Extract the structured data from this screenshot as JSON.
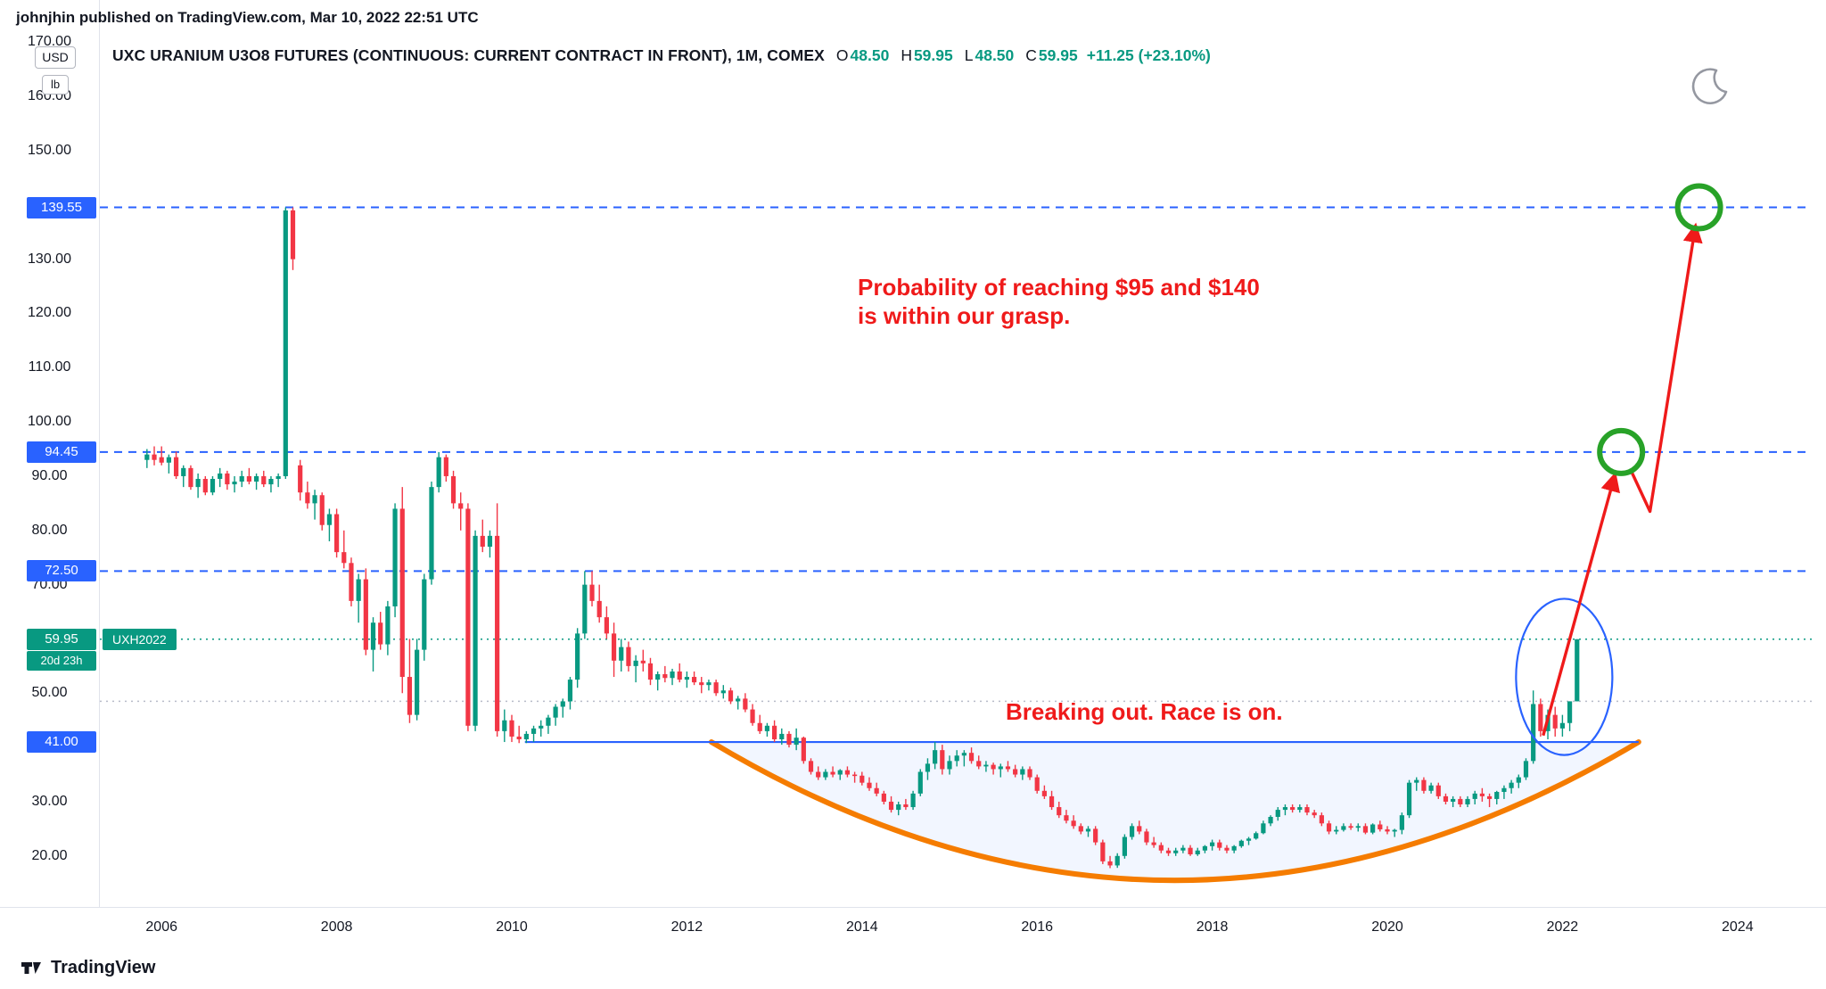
{
  "page": {
    "publisher_line": "johnjhin published on TradingView.com, Mar 10, 2022 22:51 UTC"
  },
  "header": {
    "title": "UXC URANIUM U3O8 FUTURES (CONTINUOUS: CURRENT CONTRACT IN FRONT), 1M, COMEX",
    "ohlc": [
      {
        "label": "O",
        "value": "48.50"
      },
      {
        "label": "H",
        "value": "59.95"
      },
      {
        "label": "L",
        "value": "48.50"
      },
      {
        "label": "C",
        "value": "59.95"
      }
    ],
    "change": "+11.25 (+23.10%)",
    "up_color": "#089981"
  },
  "axis": {
    "unit_primary": "USD",
    "unit_secondary": "lb",
    "y_ticks": [
      {
        "text": "170.00",
        "value": 170
      },
      {
        "text": "160.00",
        "value": 160
      },
      {
        "text": "150.00",
        "value": 150
      },
      {
        "text": "130.00",
        "value": 130
      },
      {
        "text": "120.00",
        "value": 120
      },
      {
        "text": "110.00",
        "value": 110
      },
      {
        "text": "100.00",
        "value": 100
      },
      {
        "text": "90.00",
        "value": 90
      },
      {
        "text": "80.00",
        "value": 80
      },
      {
        "text": "70.00",
        "value": 70
      },
      {
        "text": "50.00",
        "value": 50
      },
      {
        "text": "30.00",
        "value": 30
      },
      {
        "text": "20.00",
        "value": 20
      }
    ],
    "x_ticks": [
      {
        "text": "2006",
        "year": 2006
      },
      {
        "text": "2008",
        "year": 2008
      },
      {
        "text": "2010",
        "year": 2010
      },
      {
        "text": "2012",
        "year": 2012
      },
      {
        "text": "2014",
        "year": 2014
      },
      {
        "text": "2016",
        "year": 2016
      },
      {
        "text": "2018",
        "year": 2018
      },
      {
        "text": "2020",
        "year": 2020
      },
      {
        "text": "2022",
        "year": 2022
      },
      {
        "text": "2024",
        "year": 2024
      }
    ]
  },
  "annotations": {
    "note1_line1": "Probability of reaching $95 and $140",
    "note1_line2": "is within our grasp.",
    "note2": "Breaking out. Race is on.",
    "color": "#ef1a1a"
  },
  "footer": {
    "logo_text": "TradingView"
  },
  "chart_data": {
    "type": "candlestick",
    "title": "UXC URANIUM U3O8 FUTURES (CONTINUOUS: CURRENT CONTRACT IN FRONT)",
    "interval": "1M",
    "exchange": "COMEX",
    "last_ohlc": {
      "open": 48.5,
      "high": 59.95,
      "low": 48.5,
      "close": 59.95,
      "change": 11.25,
      "change_pct": 23.1
    },
    "current_price": 59.95,
    "prev_close": 48.5,
    "up_color": "#089981",
    "down_color": "#f23645",
    "visible_price_range": [
      15,
      172
    ],
    "visible_year_range": [
      2005.6,
      2025.1
    ],
    "start": {
      "year": 2005,
      "month": 11
    },
    "candles": [
      [
        93,
        95,
        91.5,
        94
      ],
      [
        94,
        95.5,
        92,
        93
      ],
      [
        93.5,
        95.5,
        92,
        92.5
      ],
      [
        92.5,
        94,
        90.5,
        93.5
      ],
      [
        93.5,
        94.5,
        89.5,
        90
      ],
      [
        90,
        92,
        88,
        91.5
      ],
      [
        91.5,
        92,
        87.5,
        88
      ],
      [
        88,
        90.5,
        86,
        89.5
      ],
      [
        89.5,
        90,
        86.5,
        87
      ],
      [
        87,
        90,
        86.5,
        89.5
      ],
      [
        89.5,
        91.5,
        88,
        90.5
      ],
      [
        90.5,
        91,
        87.5,
        88.5
      ],
      [
        88.5,
        90,
        87,
        89
      ],
      [
        89,
        91,
        88,
        90
      ],
      [
        90,
        91.5,
        88.5,
        89
      ],
      [
        89,
        90.5,
        87.5,
        90
      ],
      [
        90,
        91,
        88,
        88.5
      ],
      [
        88.5,
        90,
        87,
        89.5
      ],
      [
        89.5,
        90.5,
        88,
        90
      ],
      [
        90,
        139.55,
        89.5,
        139
      ],
      [
        139,
        139.55,
        128,
        130
      ],
      [
        92,
        93,
        85.5,
        87
      ],
      [
        87,
        89,
        84,
        85
      ],
      [
        85,
        87.5,
        82,
        86.5
      ],
      [
        86.5,
        87,
        80,
        81
      ],
      [
        81,
        84,
        78,
        83
      ],
      [
        83,
        84,
        75,
        76
      ],
      [
        76,
        80,
        73,
        74
      ],
      [
        74,
        75,
        66,
        67
      ],
      [
        67,
        72,
        63,
        71
      ],
      [
        71,
        73,
        57,
        58
      ],
      [
        58,
        64,
        54,
        63
      ],
      [
        63,
        65,
        58,
        59
      ],
      [
        59,
        67,
        57,
        66
      ],
      [
        66,
        85,
        64,
        84
      ],
      [
        84,
        88,
        50,
        53
      ],
      [
        53,
        60,
        44.5,
        46
      ],
      [
        46,
        60,
        45,
        58
      ],
      [
        58,
        72,
        56,
        71
      ],
      [
        71,
        89,
        70,
        88
      ],
      [
        88,
        94.45,
        87,
        93.5
      ],
      [
        93.5,
        94,
        89,
        90
      ],
      [
        90,
        91,
        84,
        85
      ],
      [
        85,
        87,
        80,
        84
      ],
      [
        84,
        85,
        43,
        44
      ],
      [
        44,
        80,
        43,
        79
      ],
      [
        79,
        82,
        76,
        77
      ],
      [
        77,
        80,
        75,
        79
      ],
      [
        79,
        85,
        42,
        43
      ],
      [
        43,
        47,
        41,
        45
      ],
      [
        45,
        46,
        41,
        42
      ],
      [
        42,
        44,
        40.8,
        41.5
      ],
      [
        41.5,
        43,
        40.8,
        42.5
      ],
      [
        42.5,
        44,
        41,
        43.5
      ],
      [
        43.5,
        45,
        42,
        44
      ],
      [
        44,
        46,
        42.5,
        45.5
      ],
      [
        45.5,
        48,
        44,
        47.5
      ],
      [
        47.5,
        49,
        45.5,
        48.5
      ],
      [
        48.5,
        53,
        47,
        52.5
      ],
      [
        52.5,
        62,
        51,
        61
      ],
      [
        61,
        72.5,
        60,
        70
      ],
      [
        70,
        72.5,
        66,
        67
      ],
      [
        67,
        70,
        63,
        64
      ],
      [
        64,
        66,
        60,
        61
      ],
      [
        61,
        63,
        53,
        56
      ],
      [
        56,
        60,
        54,
        58.5
      ],
      [
        58.5,
        59.5,
        54,
        55
      ],
      [
        55,
        57,
        52,
        56
      ],
      [
        56,
        58,
        54,
        55.5
      ],
      [
        55.5,
        56.5,
        51.5,
        52.5
      ],
      [
        52.5,
        54,
        50.5,
        53.5
      ],
      [
        53.5,
        55,
        52,
        52.8
      ],
      [
        52.8,
        54.5,
        51.5,
        54
      ],
      [
        54,
        55.5,
        52,
        52.5
      ],
      [
        52.5,
        54,
        51,
        53
      ],
      [
        53,
        54,
        51.5,
        52
      ],
      [
        52,
        53,
        50,
        51.5
      ],
      [
        51.5,
        52.5,
        50.5,
        52
      ],
      [
        52,
        52.5,
        49.5,
        50
      ],
      [
        50,
        51.5,
        49,
        50.5
      ],
      [
        50.5,
        51,
        48,
        48.5
      ],
      [
        48.5,
        49.5,
        47,
        49
      ],
      [
        49,
        50,
        46.5,
        47
      ],
      [
        47,
        48,
        44,
        44.5
      ],
      [
        44.5,
        46,
        42.5,
        43
      ],
      [
        43,
        44.5,
        42,
        44
      ],
      [
        44,
        45,
        41,
        41.5
      ],
      [
        41.5,
        43.5,
        40.5,
        42.5
      ],
      [
        42.5,
        43,
        40,
        40.5
      ],
      [
        40.5,
        43.5,
        39.5,
        41.8
      ],
      [
        41.8,
        42,
        37,
        37.5
      ],
      [
        37.5,
        38,
        35,
        35.5
      ],
      [
        35.5,
        36.5,
        34,
        34.5
      ],
      [
        34.5,
        36,
        34,
        35.5
      ],
      [
        35.5,
        36.5,
        34.5,
        35
      ],
      [
        35,
        36,
        34,
        35.8
      ],
      [
        35.8,
        36.5,
        34.5,
        35
      ],
      [
        35,
        35.5,
        33.5,
        34.8
      ],
      [
        34.8,
        35.5,
        33,
        33.5
      ],
      [
        33.5,
        34.5,
        32,
        32.5
      ],
      [
        32.5,
        33.5,
        31,
        31.5
      ],
      [
        31.5,
        32,
        29.5,
        30
      ],
      [
        30,
        31,
        28,
        28.5
      ],
      [
        28.5,
        30,
        27.5,
        29.5
      ],
      [
        29.5,
        30.5,
        28.5,
        29
      ],
      [
        29,
        32,
        28.5,
        31.5
      ],
      [
        31.5,
        36,
        31,
        35.5
      ],
      [
        35.5,
        38,
        34,
        37
      ],
      [
        37,
        41,
        36,
        39.5
      ],
      [
        39.5,
        40.5,
        35,
        36
      ],
      [
        36,
        38.5,
        35,
        37.5
      ],
      [
        37.5,
        39.5,
        36.5,
        38.5
      ],
      [
        38.5,
        39.5,
        36.5,
        39
      ],
      [
        39,
        40,
        37,
        37.5
      ],
      [
        37.5,
        38.5,
        36,
        36.5
      ],
      [
        36.5,
        37.5,
        35.5,
        36.8
      ],
      [
        36.8,
        37.2,
        35,
        36
      ],
      [
        36,
        37,
        34.5,
        36.5
      ],
      [
        36.5,
        37.5,
        35.5,
        36
      ],
      [
        36,
        36.8,
        34.5,
        35
      ],
      [
        35,
        36.5,
        34,
        36
      ],
      [
        36,
        36.5,
        34,
        34.5
      ],
      [
        34.5,
        35,
        31.5,
        32
      ],
      [
        32,
        33,
        30.5,
        31
      ],
      [
        31,
        32,
        28.5,
        29
      ],
      [
        29,
        30,
        27,
        27.5
      ],
      [
        27.5,
        28.5,
        26,
        26.5
      ],
      [
        26.5,
        27.5,
        25,
        25.5
      ],
      [
        25.5,
        26,
        24,
        24.5
      ],
      [
        24.5,
        25.5,
        23.5,
        25
      ],
      [
        25,
        25.5,
        22,
        22.5
      ],
      [
        22.5,
        23,
        18.5,
        19
      ],
      [
        19,
        20,
        17.75,
        18.25
      ],
      [
        18.25,
        20.5,
        17.8,
        20
      ],
      [
        20,
        24,
        19.5,
        23.5
      ],
      [
        23.5,
        26,
        23,
        25.5
      ],
      [
        25.5,
        26.5,
        24,
        24.5
      ],
      [
        24.5,
        25,
        22,
        22.5
      ],
      [
        22.5,
        23.5,
        21.5,
        22
      ],
      [
        22,
        22.5,
        20.5,
        21
      ],
      [
        21,
        21.5,
        20,
        20.5
      ],
      [
        20.5,
        21.5,
        20,
        21
      ],
      [
        21,
        22,
        20.5,
        21.5
      ],
      [
        21.5,
        22,
        20,
        20.3
      ],
      [
        20.3,
        21.5,
        20,
        21
      ],
      [
        21,
        22,
        20.5,
        21.8
      ],
      [
        21.8,
        23,
        21,
        22.5
      ],
      [
        22.5,
        23,
        21,
        21.5
      ],
      [
        21.5,
        22,
        20.5,
        21
      ],
      [
        21,
        22,
        20.5,
        21.8
      ],
      [
        21.8,
        23,
        21.5,
        22.8
      ],
      [
        22.8,
        23.5,
        22,
        23.2
      ],
      [
        23.2,
        24.5,
        23,
        24.2
      ],
      [
        24.2,
        26.5,
        24,
        26
      ],
      [
        26,
        27.5,
        25.5,
        27.2
      ],
      [
        27.2,
        29,
        26.5,
        28.5
      ],
      [
        28.5,
        29.5,
        27.5,
        29
      ],
      [
        29,
        29.5,
        28,
        28.5
      ],
      [
        28.5,
        29.5,
        28,
        29
      ],
      [
        29,
        29.5,
        27.5,
        28
      ],
      [
        28,
        28.5,
        27,
        27.5
      ],
      [
        27.5,
        28,
        25.5,
        26
      ],
      [
        26,
        26.5,
        24,
        24.5
      ],
      [
        24.5,
        25.5,
        24,
        24.8
      ],
      [
        24.8,
        26,
        24.5,
        25.5
      ],
      [
        25.5,
        26,
        24.8,
        25.2
      ],
      [
        25.2,
        26,
        24.5,
        25.5
      ],
      [
        25.5,
        26,
        24,
        24.3
      ],
      [
        24.3,
        26,
        24,
        25.8
      ],
      [
        25.8,
        26.5,
        24.5,
        24.9
      ],
      [
        24.9,
        25.5,
        24,
        24.5
      ],
      [
        24.5,
        25,
        23.5,
        24.8
      ],
      [
        24.8,
        28,
        24,
        27.5
      ],
      [
        27.5,
        34,
        27,
        33.5
      ],
      [
        33.5,
        34.5,
        32,
        34
      ],
      [
        34,
        34.5,
        31.5,
        32
      ],
      [
        32,
        33.5,
        31.5,
        33
      ],
      [
        33,
        33.5,
        30.5,
        31
      ],
      [
        31,
        31.5,
        29.5,
        30
      ],
      [
        30,
        31,
        29,
        30.5
      ],
      [
        30.5,
        31,
        29,
        29.5
      ],
      [
        29.5,
        31,
        29,
        30.5
      ],
      [
        30.5,
        32,
        29.5,
        31.5
      ],
      [
        31.5,
        32.5,
        30,
        31
      ],
      [
        31,
        31.5,
        29,
        30.5
      ],
      [
        30.5,
        32,
        29.5,
        31.8
      ],
      [
        31.8,
        33,
        30.5,
        32.5
      ],
      [
        32.5,
        34,
        31.5,
        33.5
      ],
      [
        33.5,
        35,
        32.5,
        34.5
      ],
      [
        34.5,
        38,
        34,
        37.5
      ],
      [
        37.5,
        50.5,
        37,
        48
      ],
      [
        48,
        49,
        42,
        43
      ],
      [
        43,
        47,
        41.5,
        46
      ],
      [
        46,
        47.5,
        42,
        43.5
      ],
      [
        43.5,
        46,
        42,
        44.5
      ],
      [
        44.5,
        48.5,
        43,
        48.5
      ],
      [
        48.5,
        59.95,
        48.5,
        59.95
      ]
    ],
    "levels": [
      {
        "price": 139.55,
        "label": "139.55",
        "style": "dashed",
        "color": "#2962ff",
        "label_bg": "#2962ff"
      },
      {
        "price": 94.45,
        "label": "94.45",
        "style": "dashed",
        "color": "#2962ff",
        "label_bg": "#2962ff"
      },
      {
        "price": 72.5,
        "label": "72.50",
        "style": "dashed",
        "color": "#2962ff",
        "label_bg": "#2962ff"
      },
      {
        "price": 59.95,
        "label": "59.95",
        "style": "dotted",
        "color": "#089981",
        "label_bg": "#089981",
        "tag": "UXH2022",
        "countdown": "20d 23h"
      },
      {
        "price": 48.5,
        "style": "dotted",
        "color": "#b8bcc9"
      },
      {
        "price": 41.0,
        "label": "41.00",
        "style": "solid",
        "color": "#2962ff",
        "label_bg": "#2962ff",
        "from_year": 2010.15,
        "to_year": 2022.87
      }
    ],
    "drawings": {
      "cup": {
        "start_year": 2012.28,
        "start_price": 41,
        "bottom_year": 2017.57,
        "bottom_price": 15.5,
        "end_year": 2022.87,
        "end_price": 41,
        "color": "#f57c00",
        "fill": "rgba(41,98,255,0.06)"
      },
      "ellipse": {
        "center_year": 2022.02,
        "center_price": 53,
        "rx_years": 0.55,
        "ry_price": 14.4,
        "color": "#2962ff"
      },
      "arrows": [
        {
          "points": [
            [
              2021.78,
              42.2
            ],
            [
              2022.6,
              90.3
            ]
          ]
        },
        {
          "points": [
            [
              2022.79,
              90.8
            ],
            [
              2023.0,
              83.5
            ],
            [
              2023.52,
              136.2
            ]
          ]
        }
      ],
      "arrow_color": "#ef1a1a",
      "circles": [
        {
          "year": 2022.67,
          "price": 94.45
        },
        {
          "year": 2023.56,
          "price": 139.55
        }
      ],
      "circle_color": "#28a228"
    }
  }
}
